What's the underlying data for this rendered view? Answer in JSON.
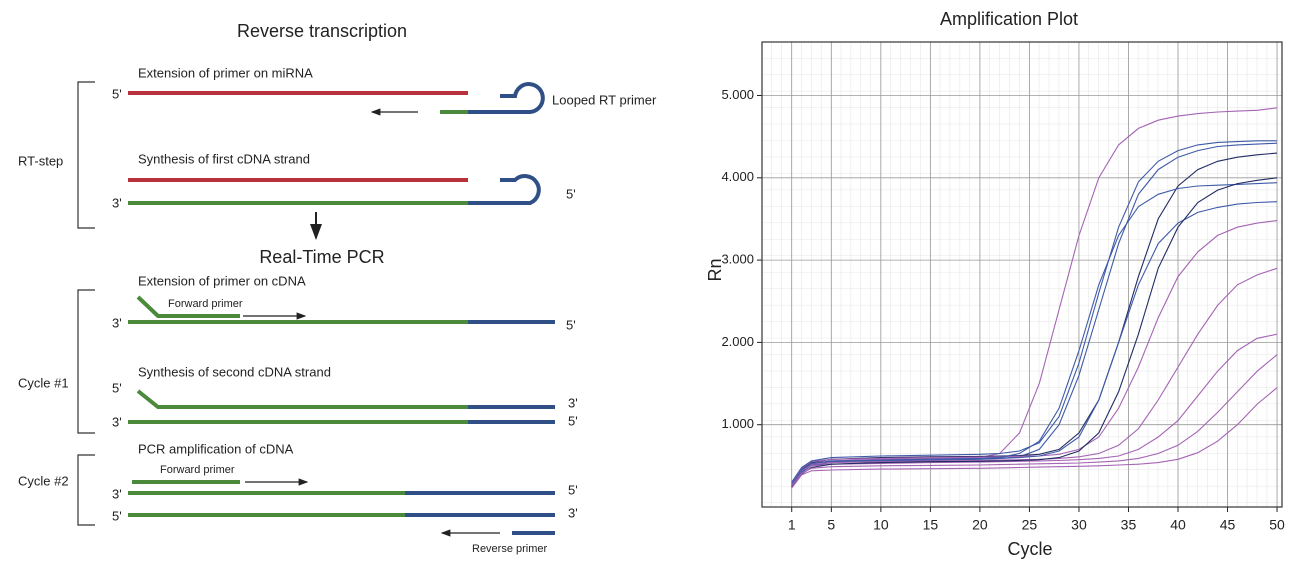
{
  "diagram": {
    "title": "Reverse transcription",
    "pcr_title": "Real-Time PCR",
    "labels": [
      "Extension of primer on miRNA",
      "5'",
      "Looped RT primer",
      "RT-step",
      "Synthesis of first cDNA strand",
      "5'",
      "3'",
      "Extension of primer on cDNA",
      "Forward primer",
      "3'",
      "5'",
      "Cycle #1",
      "Synthesis of second cDNA strand",
      "5'",
      "3'",
      "3'",
      "5'",
      "Cycle #2",
      "PCR amplification of cDNA",
      "Forward primer",
      "3'",
      "5'",
      "5'",
      "3'",
      "Reverse primer"
    ]
  },
  "chart_data": {
    "type": "line",
    "title": "Amplification Plot",
    "x_label": "Cycle",
    "y_label": "Rn",
    "xlim": [
      -2,
      50.5
    ],
    "ylim": [
      0,
      5650
    ],
    "xticks": [
      1,
      5,
      10,
      15,
      20,
      25,
      30,
      35,
      40,
      45,
      50
    ],
    "yticks": [
      {
        "value": 1000,
        "label": "1.000"
      },
      {
        "value": 2000,
        "label": "2.000"
      },
      {
        "value": 3000,
        "label": "3.000"
      },
      {
        "value": 4000,
        "label": "4.000"
      },
      {
        "value": 5000,
        "label": "5.000"
      }
    ],
    "grid": true,
    "x": [
      1,
      2,
      3,
      5,
      10,
      15,
      20,
      22,
      24,
      26,
      28,
      30,
      32,
      34,
      36,
      38,
      40,
      42,
      44,
      46,
      48,
      50
    ],
    "series": [
      {
        "color": "#a564b4",
        "values": [
          300,
          450,
          520,
          560,
          580,
          590,
          600,
          650,
          900,
          1500,
          2400,
          3300,
          4000,
          4400,
          4600,
          4700,
          4750,
          4780,
          4800,
          4810,
          4820,
          4850
        ]
      },
      {
        "color": "#3e5aa8",
        "values": [
          250,
          420,
          500,
          540,
          560,
          570,
          580,
          590,
          610,
          700,
          1000,
          1600,
          2400,
          3200,
          3800,
          4100,
          4250,
          4330,
          4380,
          4400,
          4410,
          4420
        ]
      },
      {
        "color": "#222c64",
        "values": [
          280,
          460,
          540,
          580,
          600,
          610,
          615,
          620,
          625,
          640,
          700,
          900,
          1300,
          2000,
          2800,
          3500,
          3900,
          4100,
          4200,
          4250,
          4280,
          4300
        ]
      },
      {
        "color": "#a564b4",
        "values": [
          300,
          470,
          550,
          580,
          590,
          600,
          605,
          610,
          615,
          620,
          640,
          700,
          850,
          1200,
          1700,
          2300,
          2800,
          3100,
          3300,
          3400,
          3450,
          3480
        ]
      },
      {
        "color": "#3e5aa8",
        "values": [
          260,
          430,
          510,
          550,
          570,
          580,
          585,
          590,
          600,
          620,
          680,
          850,
          1300,
          2000,
          2700,
          3200,
          3450,
          3580,
          3640,
          3680,
          3700,
          3710
        ]
      },
      {
        "color": "#a564b4",
        "values": [
          290,
          450,
          520,
          540,
          550,
          560,
          565,
          570,
          575,
          580,
          590,
          610,
          650,
          750,
          950,
          1300,
          1700,
          2100,
          2450,
          2700,
          2820,
          2900
        ]
      },
      {
        "color": "#a564b4",
        "values": [
          280,
          440,
          500,
          520,
          530,
          540,
          545,
          550,
          555,
          560,
          565,
          575,
          590,
          620,
          700,
          850,
          1050,
          1350,
          1650,
          1900,
          2050,
          2100
        ]
      },
      {
        "color": "#3e5aa8",
        "values": [
          270,
          450,
          530,
          560,
          570,
          580,
          590,
          600,
          650,
          800,
          1200,
          1900,
          2700,
          3300,
          3650,
          3800,
          3870,
          3900,
          3910,
          3920,
          3930,
          3940
        ]
      },
      {
        "color": "#222c64",
        "values": [
          240,
          400,
          480,
          520,
          540,
          550,
          555,
          560,
          565,
          575,
          600,
          680,
          900,
          1400,
          2100,
          2900,
          3400,
          3700,
          3850,
          3930,
          3970,
          4000
        ]
      },
      {
        "color": "#a564b4",
        "values": [
          260,
          410,
          470,
          490,
          500,
          505,
          510,
          515,
          520,
          525,
          530,
          535,
          545,
          560,
          590,
          650,
          750,
          920,
          1150,
          1400,
          1650,
          1850
        ]
      },
      {
        "color": "#3e5aa8",
        "values": [
          300,
          480,
          560,
          600,
          620,
          630,
          640,
          650,
          680,
          780,
          1100,
          1750,
          2600,
          3400,
          3950,
          4200,
          4330,
          4400,
          4430,
          4440,
          4450,
          4450
        ]
      },
      {
        "color": "#a564b4",
        "values": [
          230,
          390,
          440,
          450,
          460,
          465,
          470,
          475,
          480,
          485,
          490,
          495,
          500,
          510,
          520,
          540,
          580,
          660,
          800,
          1000,
          1250,
          1450
        ]
      }
    ]
  }
}
